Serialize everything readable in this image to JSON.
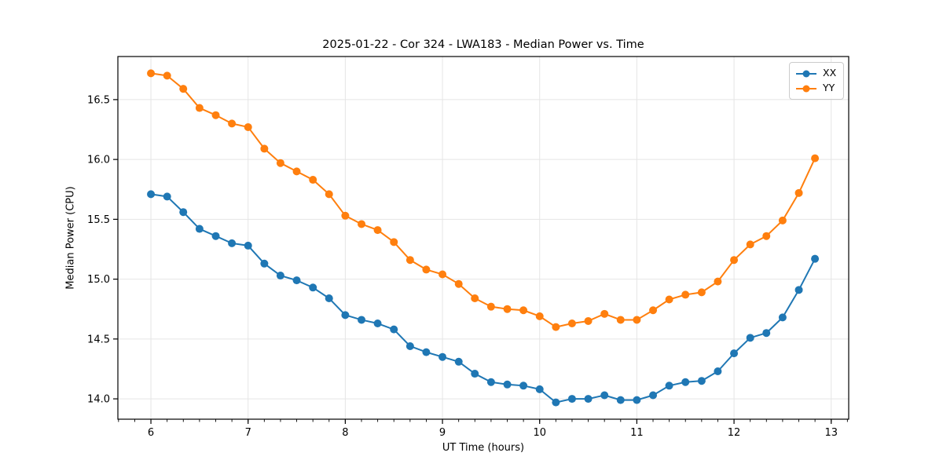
{
  "figure": {
    "title": "2025-01-22 - Cor 324 - LWA183 - Median Power vs. Time",
    "xlabel": "UT Time (hours)",
    "ylabel": "Median Power (CPU)"
  },
  "legend": {
    "position": "upper right",
    "items": [
      {
        "label": "XX",
        "color": "#1f77b4"
      },
      {
        "label": "YY",
        "color": "#ff7f0e"
      }
    ]
  },
  "colors": {
    "series_xx": "#1f77b4",
    "series_yy": "#ff7f0e",
    "grid": "#e5e5e5",
    "spine": "#000000",
    "background": "#ffffff"
  },
  "chart_data": {
    "type": "line",
    "title": "2025-01-22 - Cor 324 - LWA183 - Median Power vs. Time",
    "xlabel": "UT Time (hours)",
    "ylabel": "Median Power (CPU)",
    "marker": "circle",
    "grid": true,
    "legend_position": "upper right",
    "xlim": [
      5.66,
      13.18
    ],
    "ylim": [
      13.83,
      16.86
    ],
    "x_ticks": [
      6,
      7,
      8,
      9,
      10,
      11,
      12,
      13
    ],
    "y_ticks": [
      14.0,
      14.5,
      15.0,
      15.5,
      16.0,
      16.5
    ],
    "x_minor_tick_step": 0.166667,
    "x": [
      6.0,
      6.167,
      6.333,
      6.5,
      6.667,
      6.833,
      7.0,
      7.167,
      7.333,
      7.5,
      7.667,
      7.833,
      8.0,
      8.167,
      8.333,
      8.5,
      8.667,
      8.833,
      9.0,
      9.167,
      9.333,
      9.5,
      9.667,
      9.833,
      10.0,
      10.167,
      10.333,
      10.5,
      10.667,
      10.833,
      11.0,
      11.167,
      11.333,
      11.5,
      11.667,
      11.833,
      12.0,
      12.167,
      12.333,
      12.5,
      12.667,
      12.833
    ],
    "series": [
      {
        "name": "XX",
        "color": "#1f77b4",
        "values": [
          15.71,
          15.69,
          15.56,
          15.42,
          15.36,
          15.3,
          15.28,
          15.13,
          15.03,
          14.99,
          14.93,
          14.84,
          14.7,
          14.66,
          14.63,
          14.58,
          14.44,
          14.39,
          14.35,
          14.31,
          14.21,
          14.14,
          14.12,
          14.11,
          14.08,
          13.97,
          14.0,
          14.0,
          14.03,
          13.99,
          13.99,
          14.03,
          14.11,
          14.14,
          14.15,
          14.23,
          14.38,
          14.51,
          14.55,
          14.68,
          14.91,
          15.17
        ]
      },
      {
        "name": "YY",
        "color": "#ff7f0e",
        "values": [
          16.72,
          16.7,
          16.59,
          16.43,
          16.37,
          16.3,
          16.27,
          16.09,
          15.97,
          15.9,
          15.83,
          15.71,
          15.53,
          15.46,
          15.41,
          15.31,
          15.16,
          15.08,
          15.04,
          14.96,
          14.84,
          14.77,
          14.75,
          14.74,
          14.69,
          14.6,
          14.63,
          14.65,
          14.71,
          14.66,
          14.66,
          14.74,
          14.83,
          14.87,
          14.89,
          14.98,
          15.16,
          15.29,
          15.36,
          15.49,
          15.72,
          16.01
        ]
      }
    ]
  }
}
